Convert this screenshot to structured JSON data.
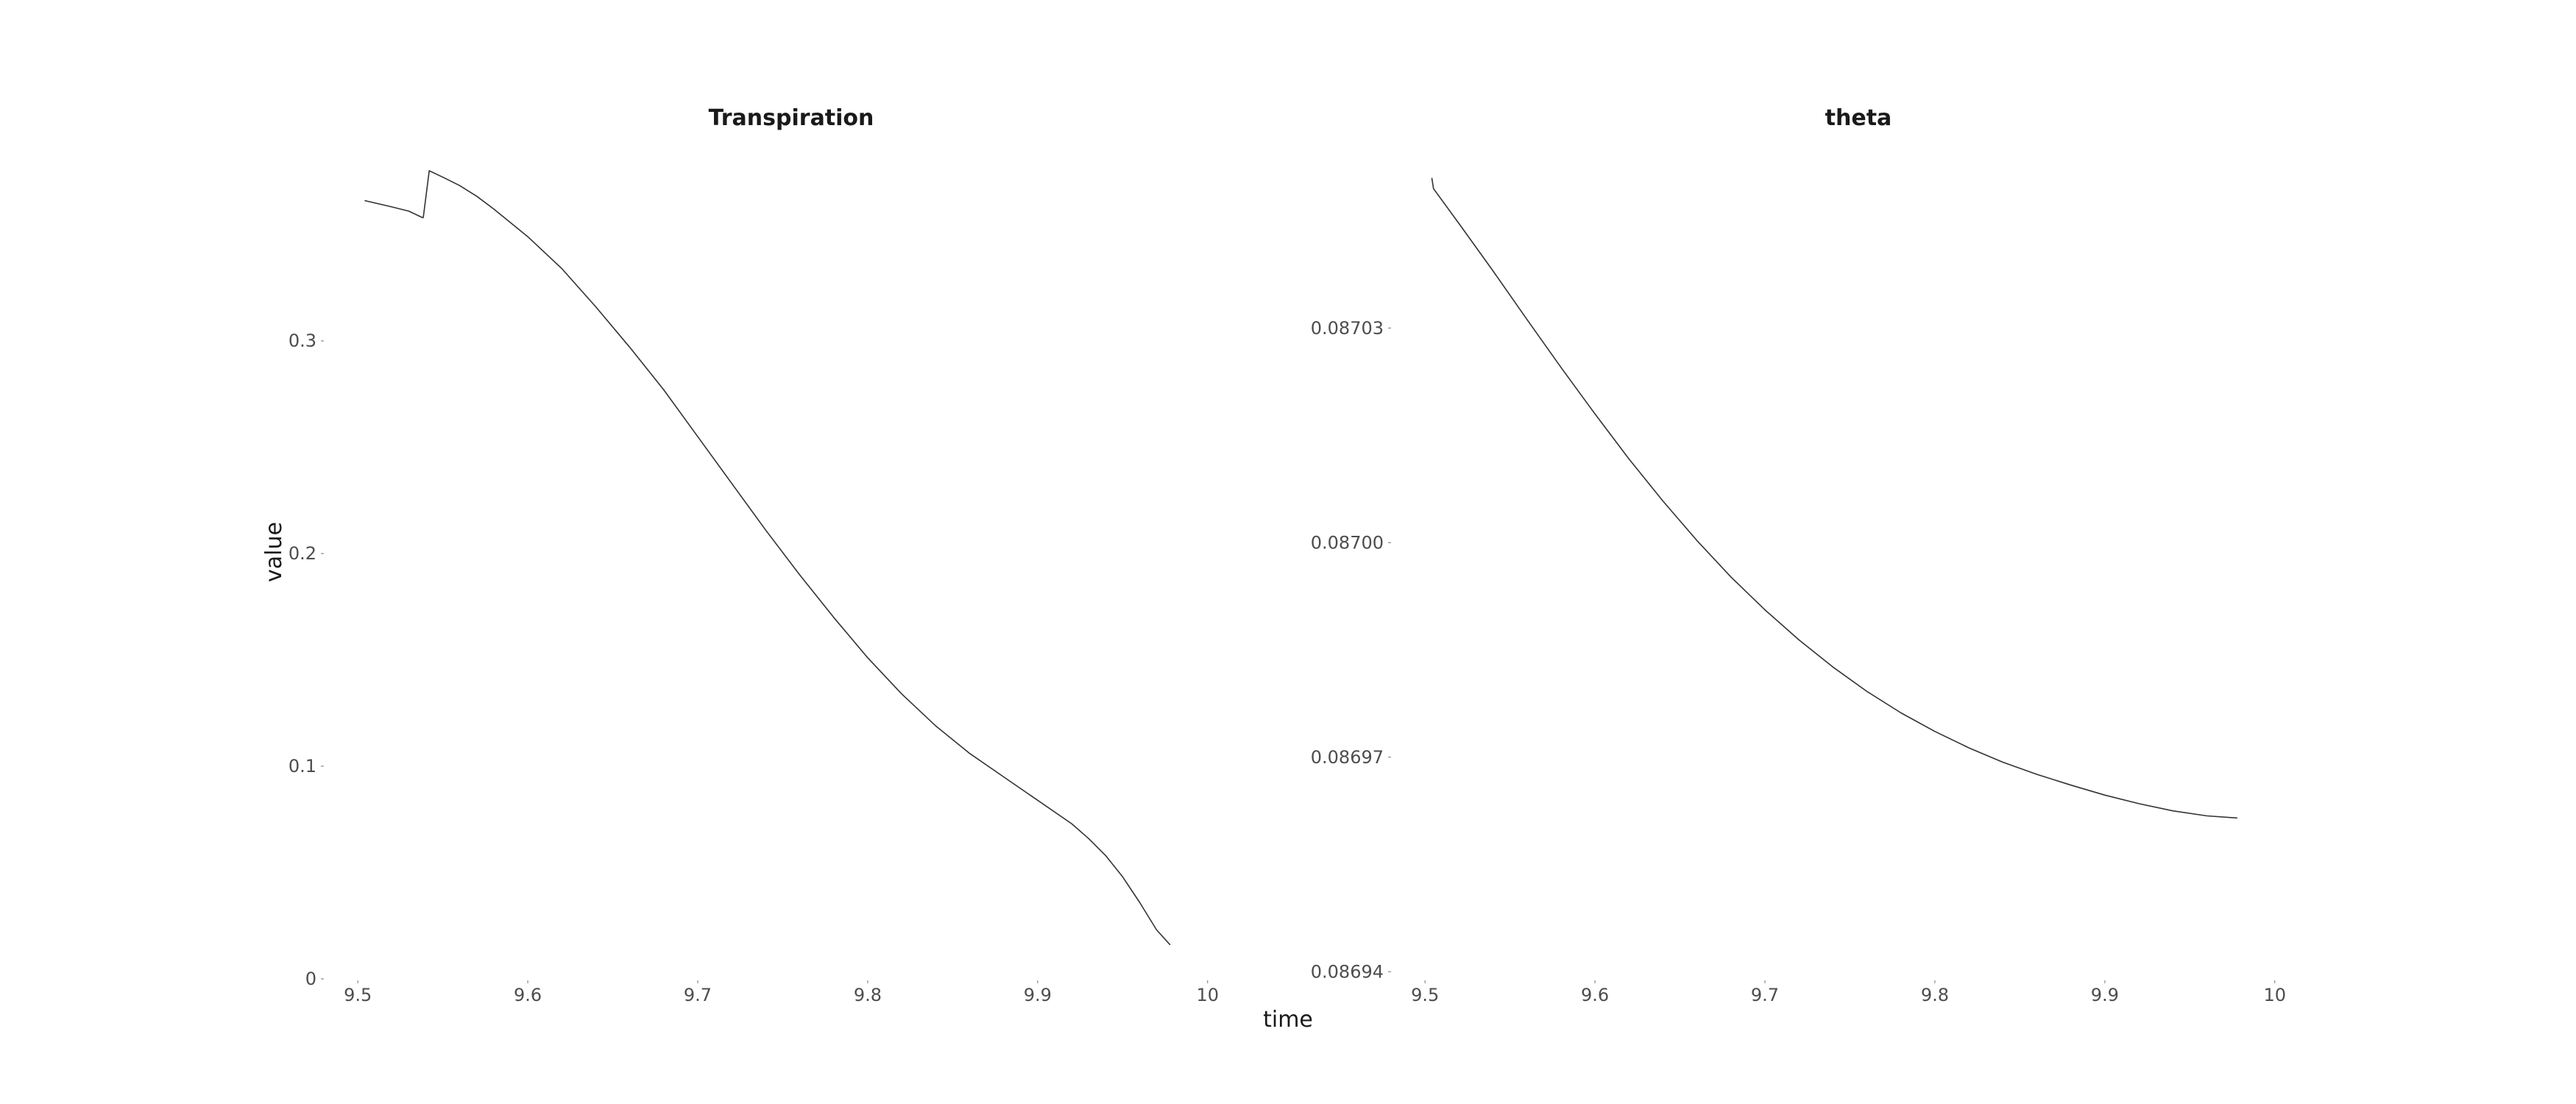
{
  "shared": {
    "xlabel": "time",
    "ylabel": "value"
  },
  "chart_data": [
    {
      "type": "line",
      "title": "Transpiration",
      "xlim": [
        9.48,
        10.03
      ],
      "ylim": [
        0,
        0.38
      ],
      "xticks": [
        9.5,
        9.6,
        9.7,
        9.8,
        9.9,
        10
      ],
      "xtick_labels": [
        "9.5",
        "9.6",
        "9.7",
        "9.8",
        "9.9",
        "10"
      ],
      "yticks": [
        0,
        0.1,
        0.2,
        0.3
      ],
      "ytick_labels": [
        "0",
        "0.1",
        "0.2",
        "0.3"
      ],
      "grid": false,
      "series": [
        {
          "x": [
            9.504,
            9.52,
            9.53,
            9.538,
            9.5385,
            9.542,
            9.55,
            9.56,
            9.57,
            9.58,
            9.6,
            9.62,
            9.64,
            9.66,
            9.68,
            9.7,
            9.72,
            9.74,
            9.76,
            9.78,
            9.8,
            9.82,
            9.84,
            9.86,
            9.88,
            9.9,
            9.92,
            9.93,
            9.94,
            9.95,
            9.96,
            9.97,
            9.978
          ],
          "y": [
            0.366,
            0.363,
            0.361,
            0.358,
            0.358,
            0.38,
            0.377,
            0.373,
            0.368,
            0.362,
            0.349,
            0.334,
            0.316,
            0.297,
            0.277,
            0.255,
            0.233,
            0.211,
            0.19,
            0.17,
            0.151,
            0.134,
            0.119,
            0.106,
            0.095,
            0.084,
            0.073,
            0.066,
            0.058,
            0.048,
            0.036,
            0.023,
            0.016
          ]
        }
      ]
    },
    {
      "type": "line",
      "title": "theta",
      "xlim": [
        9.48,
        10.03
      ],
      "ylim": [
        0.086939,
        0.087052
      ],
      "xticks": [
        9.5,
        9.6,
        9.7,
        9.8,
        9.9,
        10
      ],
      "xtick_labels": [
        "9.5",
        "9.6",
        "9.7",
        "9.8",
        "9.9",
        "10"
      ],
      "yticks": [
        0.08694,
        0.08697,
        0.087,
        0.08703
      ],
      "ytick_labels": [
        "0.08694",
        "0.08697",
        "0.08700",
        "0.08703"
      ],
      "grid": false,
      "series": [
        {
          "x": [
            9.504,
            9.505,
            9.52,
            9.54,
            9.56,
            9.58,
            9.6,
            9.62,
            9.64,
            9.66,
            9.68,
            9.7,
            9.72,
            9.74,
            9.76,
            9.78,
            9.8,
            9.82,
            9.84,
            9.86,
            9.88,
            9.9,
            9.92,
            9.94,
            9.96,
            9.978
          ],
          "y": [
            0.087051,
            0.0870495,
            0.0870446,
            0.087038,
            0.0870312,
            0.0870245,
            0.087018,
            0.0870117,
            0.0870058,
            0.0870003,
            0.0869952,
            0.0869906,
            0.0869864,
            0.0869826,
            0.0869792,
            0.0869762,
            0.0869736,
            0.0869713,
            0.0869693,
            0.0869676,
            0.0869661,
            0.0869647,
            0.0869635,
            0.0869625,
            0.0869618,
            0.0869615
          ]
        }
      ]
    }
  ]
}
